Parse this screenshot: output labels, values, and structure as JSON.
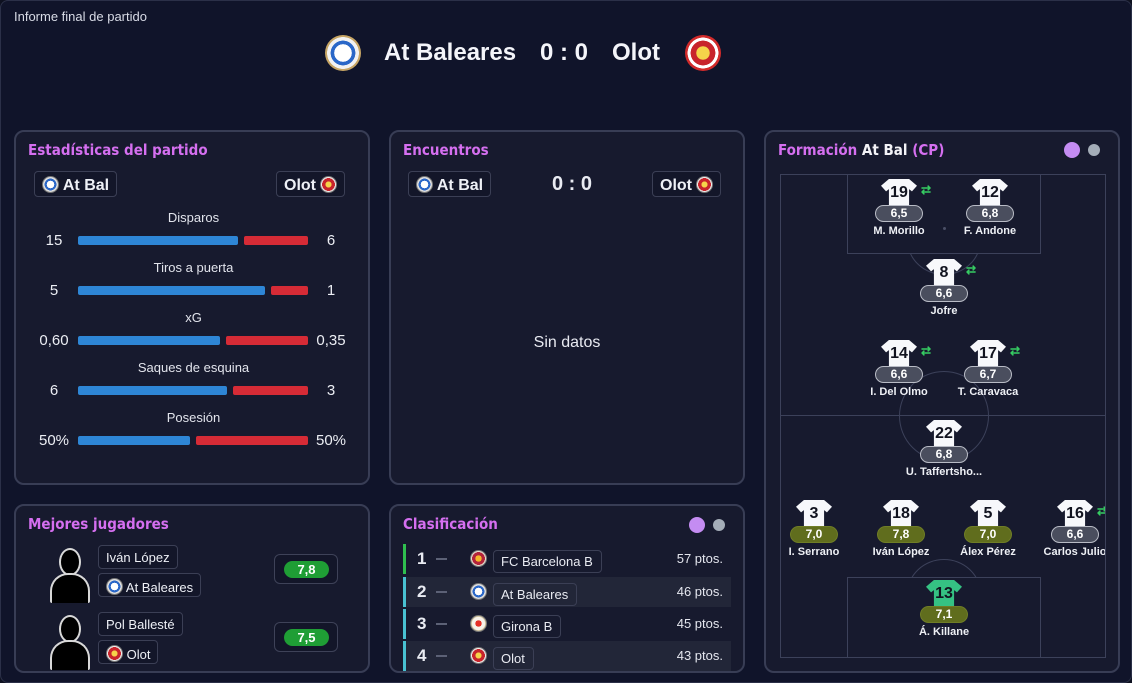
{
  "window_title": "Informe final de partido",
  "match": {
    "home": "At Baleares",
    "away": "Olot",
    "score": "0 : 0"
  },
  "stats": {
    "title": "Estadísticas del partido",
    "home_chip": "At Bal",
    "away_chip": "Olot",
    "rows": [
      {
        "label": "Disparos",
        "home": "15",
        "away": "6",
        "home_share": 0.714
      },
      {
        "label": "Tiros a puerta",
        "home": "5",
        "away": "1",
        "home_share": 0.833
      },
      {
        "label": "xG",
        "home": "0,60",
        "away": "0,35",
        "home_share": 0.632
      },
      {
        "label": "Saques de esquina",
        "home": "6",
        "away": "3",
        "home_share": 0.667
      },
      {
        "label": "Posesión",
        "home": "50%",
        "away": "50%",
        "home_share": 0.5
      }
    ]
  },
  "encounters": {
    "title": "Encuentros",
    "home_chip": "At Bal",
    "away_chip": "Olot",
    "score": "0 : 0",
    "empty": "Sin datos"
  },
  "best": {
    "title": "Mejores jugadores",
    "players": [
      {
        "name": "Iván López",
        "team": "At Baleares",
        "rating": "7,8"
      },
      {
        "name": "Pol Ballesté",
        "team": "Olot",
        "rating": "7,5"
      }
    ]
  },
  "table": {
    "title": "Clasificación",
    "rows": [
      {
        "pos": "1",
        "team": "FC Barcelona B",
        "pts": "57 ptos."
      },
      {
        "pos": "2",
        "team": "At Baleares",
        "pts": "46 ptos."
      },
      {
        "pos": "3",
        "team": "Girona B",
        "pts": "45 ptos."
      },
      {
        "pos": "4",
        "team": "Olot",
        "pts": "43 ptos."
      }
    ]
  },
  "formation": {
    "title_prefix": "Formación",
    "team": "At Bal",
    "tag": "(CP)",
    "players": [
      {
        "num": "19",
        "rating": "6,5",
        "name": "M. Morillo"
      },
      {
        "num": "12",
        "rating": "6,8",
        "name": "F. Andone"
      },
      {
        "num": "8",
        "rating": "6,6",
        "name": "Jofre"
      },
      {
        "num": "14",
        "rating": "6,6",
        "name": "I. Del Olmo"
      },
      {
        "num": "17",
        "rating": "6,7",
        "name": "T. Caravaca"
      },
      {
        "num": "22",
        "rating": "6,8",
        "name": "U. Taffertsho..."
      },
      {
        "num": "3",
        "rating": "7,0",
        "name": "I. Serrano"
      },
      {
        "num": "18",
        "rating": "7,8",
        "name": "Iván López"
      },
      {
        "num": "5",
        "rating": "7,0",
        "name": "Álex Pérez"
      },
      {
        "num": "16",
        "rating": "6,6",
        "name": "Carlos Julio"
      },
      {
        "num": "13",
        "rating": "7,1",
        "name": "Á. Killane"
      }
    ],
    "sub_icon": "⇄"
  },
  "colors": {
    "accent": "#d56ff0",
    "home_bar": "#2e86d6",
    "away_bar": "#d62b36",
    "rating_green": "#1f9e35"
  }
}
